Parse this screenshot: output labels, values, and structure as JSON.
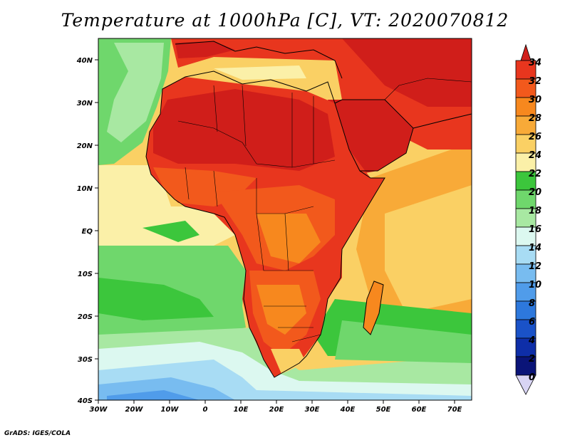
{
  "title": "Temperature at 1000hPa [C], VT: 2020070812",
  "credit": "GrADS: IGES/COLA",
  "map": {
    "lon_labels": [
      "30W",
      "20W",
      "10W",
      "0",
      "10E",
      "20E",
      "30E",
      "40E",
      "50E",
      "60E",
      "70E"
    ],
    "lat_labels": [
      "40N",
      "30N",
      "20N",
      "10N",
      "EQ",
      "10S",
      "20S",
      "30S",
      "40S"
    ]
  },
  "colorbar": {
    "labels": [
      "34",
      "32",
      "30",
      "28",
      "26",
      "24",
      "22",
      "20",
      "18",
      "16",
      "14",
      "12",
      "10",
      "8",
      "6",
      "4",
      "2",
      "0"
    ],
    "colors": {
      "above_34": "#d01e1a",
      "32_34": "#e8361e",
      "30_32": "#f2591c",
      "28_30": "#f7881e",
      "26_28": "#f8aa38",
      "24_26": "#fad064",
      "22_24": "#fbf0a8",
      "20_22": "#3cc63c",
      "18_20": "#6fd76c",
      "16_18": "#a8e8a2",
      "14_16": "#dcf8f0",
      "12_14": "#a8dcf4",
      "10_12": "#78bcf0",
      "8_10": "#509cea",
      "6_8": "#2d78dc",
      "4_6": "#1a52c8",
      "2_4": "#0e2ea8",
      "0_2": "#0a1478",
      "below_0": "#d8d4f4"
    }
  }
}
